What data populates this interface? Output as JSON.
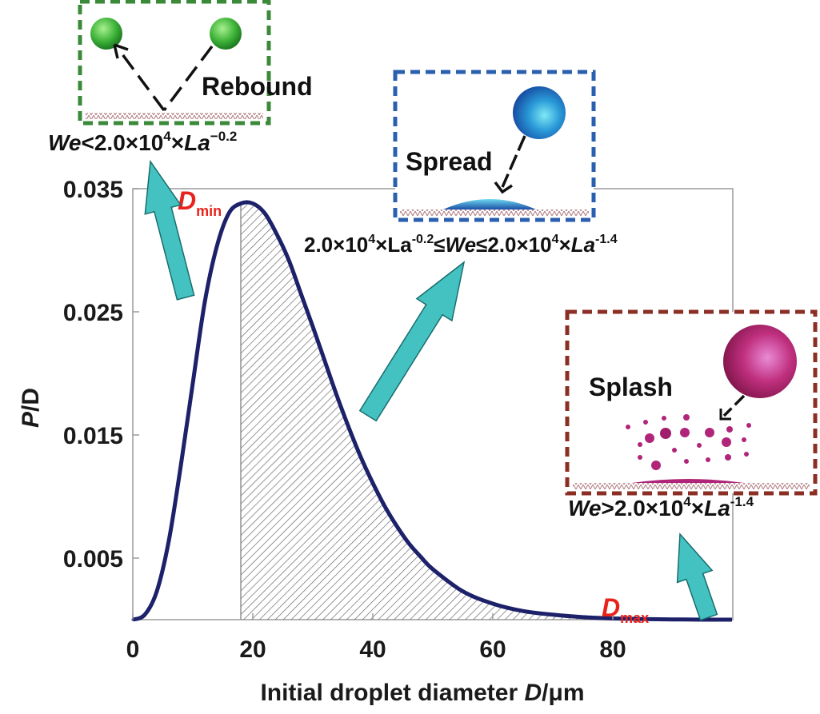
{
  "chart_data": {
    "type": "line",
    "title": "",
    "xlabel_prefix": "Initial droplet diameter ",
    "xlabel_var": "D",
    "xlabel_unit": "/μm",
    "ylabel_var": "P",
    "ylabel_rest": "/D",
    "xlim": [
      0,
      100
    ],
    "ylim": [
      0,
      0.035
    ],
    "x_ticks": [
      0,
      20,
      40,
      60,
      80
    ],
    "x_tick_labels": [
      "0",
      "20",
      "40",
      "60",
      "80"
    ],
    "y_ticks": [
      0.005,
      0.015,
      0.025,
      0.035
    ],
    "y_tick_labels": [
      "0.005",
      "0.015",
      "0.025",
      "0.035"
    ],
    "series": [
      {
        "name": "P/D",
        "x": [
          0,
          2,
          4,
          6,
          8,
          10,
          12,
          14,
          16,
          18,
          20,
          22,
          24,
          26,
          28,
          30,
          32,
          34,
          36,
          38,
          40,
          42,
          44,
          46,
          48,
          50,
          55,
          60,
          65,
          70,
          75,
          80,
          85,
          90,
          95
        ],
        "y": [
          0.0,
          0.0004,
          0.0023,
          0.0064,
          0.0125,
          0.0192,
          0.0258,
          0.0303,
          0.033,
          0.0338,
          0.0338,
          0.033,
          0.0313,
          0.0292,
          0.0265,
          0.0238,
          0.021,
          0.0182,
          0.0156,
          0.0132,
          0.0111,
          0.0092,
          0.0076,
          0.0062,
          0.0051,
          0.0041,
          0.0023,
          0.0013,
          0.0007,
          0.0004,
          0.0002,
          0.0001,
          5e-05,
          2e-05,
          0.0
        ]
      }
    ],
    "shaded_region": {
      "x_start": 18,
      "x_end": 100,
      "style": "hatched"
    },
    "markers": {
      "dmin": {
        "letter": "D",
        "sub": "min"
      },
      "dmax": {
        "letter": "D",
        "sub": "max"
      }
    }
  },
  "insets": {
    "rebound": {
      "title": "Rebound",
      "border_color": "#3a8a3a"
    },
    "spread": {
      "title": "Spread",
      "border_color": "#2a5fb0"
    },
    "splash": {
      "title": "Splash",
      "border_color": "#8b2e24"
    }
  },
  "formulas": {
    "rebound": {
      "v1": "We",
      "t1": "<2.0×10",
      "e1": "4",
      "t2": "×",
      "v2": "La",
      "e2": "−0.2"
    },
    "spread": {
      "t1": "2.0×10",
      "e1": "4",
      "t2": "×La",
      "e2": "-0.2",
      "t3": "≤",
      "v1": "We",
      "t4": "≤2.0×10",
      "e3": "4",
      "t5": "×",
      "v2": "La",
      "e4": "-1.4"
    },
    "splash": {
      "v1": "We",
      "t1": ">2.0×10",
      "e1": "4",
      "t2": "×",
      "v2": "La",
      "e2": "-1.4"
    }
  },
  "colors": {
    "curve": "#1c2169",
    "arrow_fill": "#44c2c2",
    "arrow_stroke": "#1a6d6d",
    "marker": "#e8231c",
    "drop_green": "#4fc34a",
    "drop_blue": "#2a8fd8",
    "drop_magenta": "#b0257a"
  }
}
